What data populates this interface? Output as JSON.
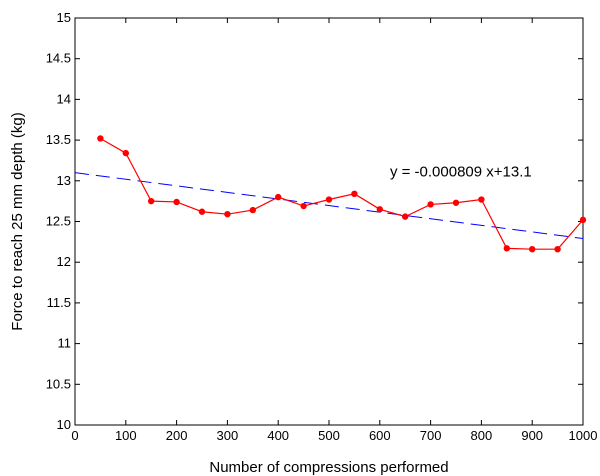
{
  "chart_data": {
    "type": "line",
    "xlabel": "Number of compressions performed",
    "ylabel": "Force to reach 25 mm depth (kg)",
    "xlim": [
      0,
      1000
    ],
    "ylim": [
      10,
      15
    ],
    "x_ticks": [
      "0",
      "100",
      "200",
      "300",
      "400",
      "500",
      "600",
      "700",
      "800",
      "900",
      "1000"
    ],
    "y_ticks": [
      "10",
      "10.5",
      "11",
      "11.5",
      "12",
      "12.5",
      "13",
      "13.5",
      "14",
      "14.5",
      "15"
    ],
    "grid": false,
    "series": [
      {
        "color": "#ff0000",
        "style": "solid-with-markers",
        "x": [
          50,
          100,
          150,
          200,
          250,
          300,
          350,
          400,
          450,
          500,
          550,
          600,
          650,
          700,
          750,
          800,
          850,
          900,
          950,
          1000
        ],
        "values": [
          13.52,
          13.34,
          12.75,
          12.74,
          12.62,
          12.59,
          12.64,
          12.8,
          12.69,
          12.77,
          12.84,
          12.65,
          12.56,
          12.71,
          12.73,
          12.77,
          12.17,
          12.16,
          12.16,
          12.52
        ]
      },
      {
        "color": "#0000ff",
        "style": "dashed",
        "fit": {
          "slope": -0.000809,
          "intercept": 13.1,
          "x_start": 0,
          "x_end": 1000
        }
      }
    ],
    "annotations": [
      {
        "text": "y = -0.000809 x+13.1",
        "x": 620,
        "y": 13.05
      }
    ]
  }
}
